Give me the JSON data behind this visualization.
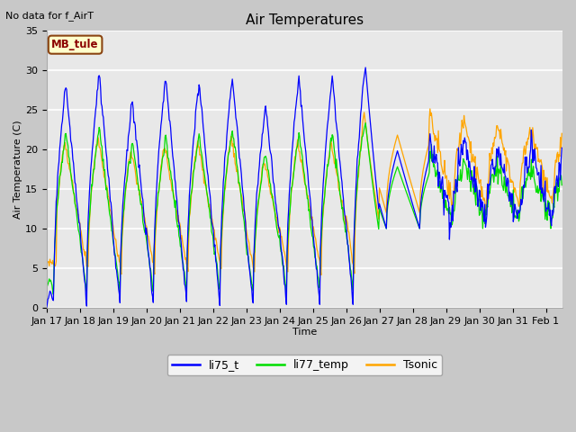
{
  "title": "Air Temperatures",
  "xlabel": "Time",
  "ylabel": "Air Temperature (C)",
  "top_left_text": "No data for f_AirT",
  "legend_label_text": "MB_tule",
  "ylim": [
    0,
    35
  ],
  "yticks": [
    0,
    5,
    10,
    15,
    20,
    25,
    30,
    35
  ],
  "x_tick_labels": [
    "Jan 17",
    "Jan 18",
    "Jan 19",
    "Jan 20",
    "Jan 21",
    "Jan 22",
    "Jan 23",
    "Jan 24",
    "Jan 25",
    "Jan 26",
    "Jan 27",
    "Jan 28",
    "Jan 29",
    "Jan 30",
    "Jan 31",
    "Feb 1"
  ],
  "series": {
    "li75_t": {
      "color": "#0000ff",
      "label": "li75_t"
    },
    "li77_temp": {
      "color": "#00dd00",
      "label": "li77_temp"
    },
    "Tsonic": {
      "color": "#ffa500",
      "label": "Tsonic"
    }
  },
  "fig_bg_color": "#c8c8c8",
  "plot_bg_color": "#e8e8e8",
  "grid_color": "#ffffff",
  "legend_box_facecolor": "#ffffcc",
  "legend_box_edgecolor": "#8b4513",
  "legend_text_color": "#8b0000",
  "title_fontsize": 11,
  "axis_label_fontsize": 8,
  "tick_fontsize": 8
}
